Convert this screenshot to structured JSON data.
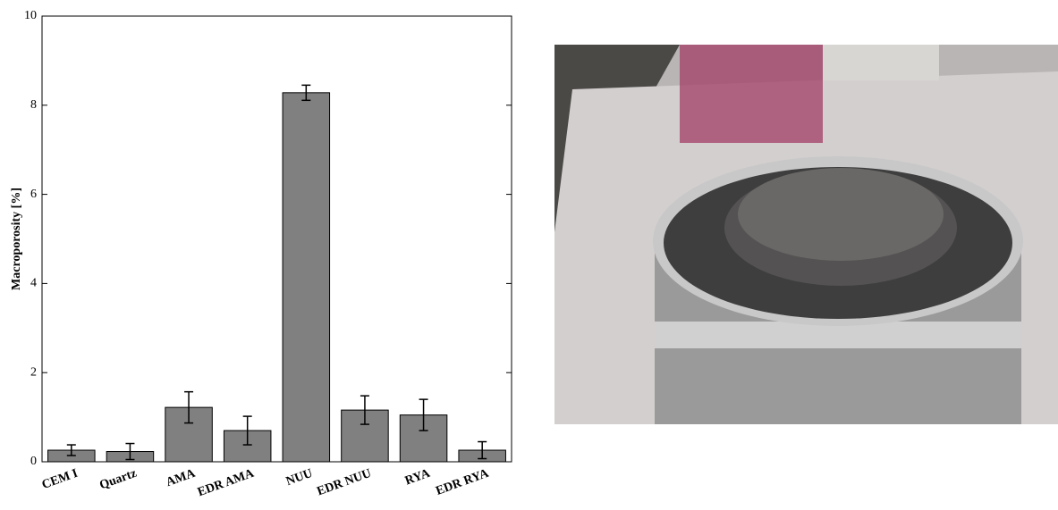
{
  "chart_data": {
    "type": "bar",
    "y_label": "Macroporosity [%]",
    "categories": [
      "CEM I",
      "Quartz",
      "AMA",
      "EDR AMA",
      "NUU",
      "EDR NUU",
      "RYA",
      "EDR RYA"
    ],
    "values": [
      0.26,
      0.23,
      1.22,
      0.7,
      8.28,
      1.16,
      1.05,
      0.26
    ],
    "errors": [
      0.12,
      0.18,
      0.35,
      0.32,
      0.17,
      0.32,
      0.35,
      0.19
    ],
    "color": "#808080",
    "ylim": [
      0,
      10
    ],
    "yticks": [
      0,
      2,
      4,
      6,
      8,
      10
    ],
    "grid": false
  }
}
